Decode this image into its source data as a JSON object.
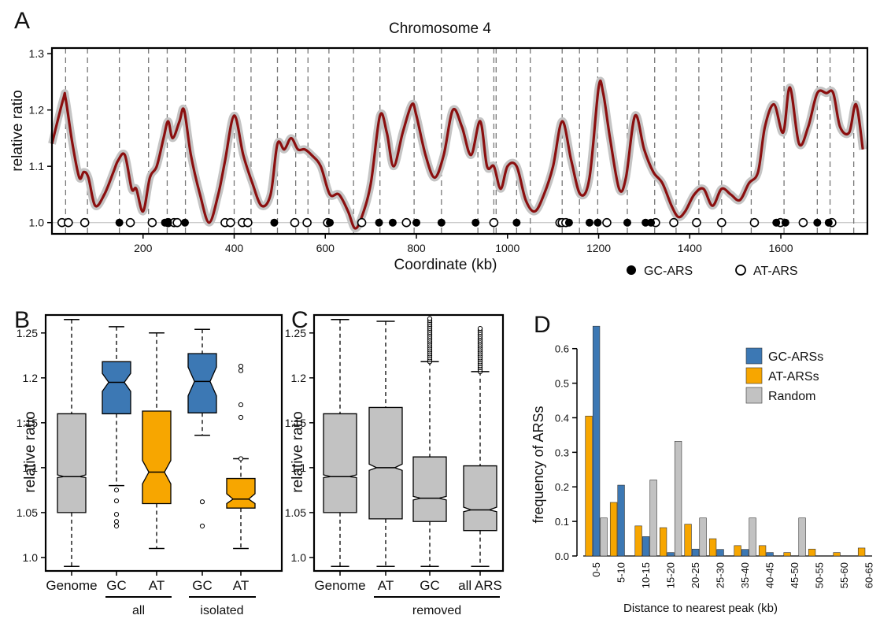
{
  "panels": {
    "A": {
      "letter": "A",
      "title": "Chromosome 4",
      "ylabel": "relative ratio",
      "xlabel": "Coordinate (kb)",
      "yticks": [
        "1.0",
        "1.1",
        "1.2",
        "1.3"
      ],
      "xticks": [
        "200",
        "400",
        "600",
        "800",
        "1000",
        "1200",
        "1400",
        "1600"
      ],
      "legend": {
        "gc": "GC-ARS",
        "at": "AT-ARS"
      }
    },
    "B": {
      "letter": "B",
      "ylabel": "relative ratio",
      "yticks": [
        "1.0",
        "1.05",
        "1.1",
        "1.15",
        "1.2",
        "1.25"
      ],
      "cats": [
        "Genome",
        "GC",
        "AT",
        "GC",
        "AT"
      ],
      "groups": [
        "all",
        "isolated"
      ]
    },
    "C": {
      "letter": "C",
      "ylabel": "relative ratio",
      "yticks": [
        "1.0",
        "1.05",
        "1.1",
        "1.15",
        "1.2",
        "1.25"
      ],
      "cats": [
        "Genome",
        "AT",
        "GC",
        "all ARS"
      ],
      "group": "removed"
    },
    "D": {
      "letter": "D",
      "ylabel": "frequency of ARSs",
      "xlabel": "Distance to nearest peak (kb)",
      "yticks": [
        "0.0",
        "0.1",
        "0.2",
        "0.3",
        "0.4",
        "0.5",
        "0.6"
      ],
      "legend": [
        "GC-ARSs",
        "AT-ARSs",
        "Random"
      ]
    }
  },
  "colors": {
    "line": "#8b0f0f",
    "band": "#c4c4c4",
    "gc": "#3c78b4",
    "at": "#f7a600",
    "random": "#c2c2c2",
    "grey_box": "#c2c2c2"
  },
  "chart_data": [
    {
      "panel": "A",
      "type": "line",
      "title": "Chromosome 4",
      "xlabel": "Coordinate (kb)",
      "ylabel": "relative ratio",
      "xlim": [
        0,
        1790
      ],
      "ylim": [
        0.98,
        1.31
      ],
      "x": [
        0,
        25,
        30,
        45,
        60,
        70,
        80,
        95,
        115,
        135,
        145,
        160,
        175,
        185,
        200,
        215,
        230,
        245,
        255,
        265,
        280,
        290,
        305,
        325,
        345,
        365,
        380,
        400,
        420,
        440,
        460,
        480,
        495,
        510,
        525,
        540,
        555,
        570,
        590,
        610,
        630,
        650,
        665,
        680,
        700,
        720,
        735,
        750,
        770,
        790,
        800,
        820,
        840,
        860,
        880,
        900,
        920,
        940,
        955,
        970,
        985,
        1000,
        1020,
        1040,
        1060,
        1080,
        1100,
        1120,
        1140,
        1160,
        1180,
        1200,
        1210,
        1225,
        1245,
        1260,
        1280,
        1300,
        1320,
        1340,
        1360,
        1375,
        1390,
        1410,
        1430,
        1450,
        1470,
        1490,
        1510,
        1530,
        1550,
        1565,
        1585,
        1605,
        1620,
        1640,
        1660,
        1680,
        1700,
        1715,
        1730,
        1750,
        1765,
        1780
      ],
      "y": [
        1.14,
        1.22,
        1.22,
        1.14,
        1.08,
        1.09,
        1.08,
        1.03,
        1.05,
        1.09,
        1.11,
        1.12,
        1.06,
        1.06,
        1.02,
        1.08,
        1.1,
        1.15,
        1.18,
        1.15,
        1.18,
        1.2,
        1.12,
        1.05,
        1.0,
        1.05,
        1.11,
        1.19,
        1.12,
        1.07,
        1.03,
        1.05,
        1.14,
        1.13,
        1.15,
        1.13,
        1.13,
        1.12,
        1.1,
        1.05,
        1.05,
        1.02,
        0.99,
        1.01,
        1.07,
        1.19,
        1.16,
        1.1,
        1.16,
        1.21,
        1.19,
        1.12,
        1.08,
        1.12,
        1.2,
        1.17,
        1.12,
        1.18,
        1.1,
        1.1,
        1.06,
        1.1,
        1.1,
        1.04,
        1.02,
        1.05,
        1.1,
        1.18,
        1.11,
        1.05,
        1.08,
        1.24,
        1.23,
        1.15,
        1.06,
        1.08,
        1.19,
        1.13,
        1.09,
        1.07,
        1.03,
        1.01,
        1.02,
        1.05,
        1.06,
        1.03,
        1.06,
        1.05,
        1.04,
        1.07,
        1.09,
        1.17,
        1.21,
        1.16,
        1.24,
        1.14,
        1.17,
        1.23,
        1.23,
        1.23,
        1.17,
        1.16,
        1.21,
        1.13
      ],
      "dashed_vlines": [
        30,
        78,
        148,
        212,
        253,
        293,
        400,
        437,
        495,
        535,
        562,
        608,
        662,
        720,
        795,
        855,
        935,
        970,
        975,
        1020,
        1050,
        1120,
        1158,
        1198,
        1263,
        1323,
        1370,
        1420,
        1470,
        1535,
        1607,
        1680,
        1708,
        1760
      ],
      "gc_ars_x": [
        148,
        248,
        255,
        292,
        488,
        610,
        718,
        748,
        800,
        855,
        930,
        1020,
        1135,
        1180,
        1198,
        1263,
        1303,
        1315,
        1590,
        1610,
        1680,
        1705
      ],
      "at_ars_x": [
        22,
        36,
        72,
        172,
        220,
        255,
        268,
        275,
        380,
        392,
        418,
        430,
        533,
        560,
        605,
        680,
        778,
        970,
        1115,
        1120,
        1128,
        1218,
        1325,
        1365,
        1415,
        1470,
        1542,
        1599,
        1649,
        1712
      ],
      "series": [
        {
          "name": "GC-ARS"
        },
        {
          "name": "AT-ARS"
        }
      ]
    },
    {
      "panel": "B",
      "type": "boxplot",
      "ylabel": "relative ratio",
      "ylim": [
        0.985,
        1.27
      ],
      "categories": [
        "Genome",
        "GC",
        "AT",
        "GC",
        "AT"
      ],
      "groups": [
        {
          "label": "all",
          "categories": [
            1,
            2
          ]
        },
        {
          "label": "isolated",
          "categories": [
            3,
            4
          ]
        }
      ],
      "boxes": [
        {
          "min": 0.99,
          "q1": 1.05,
          "median": 1.09,
          "q3": 1.16,
          "max": 1.265,
          "notch": [
            1.089,
            1.092
          ],
          "color": "grey",
          "outliers": []
        },
        {
          "min": 1.08,
          "q1": 1.16,
          "median": 1.195,
          "q3": 1.218,
          "max": 1.257,
          "notch": [
            1.185,
            1.205
          ],
          "color": "gc",
          "outliers": [
            1.075,
            1.063,
            1.048,
            1.04,
            1.035
          ]
        },
        {
          "min": 1.01,
          "q1": 1.06,
          "median": 1.095,
          "q3": 1.163,
          "max": 1.25,
          "notch": [
            1.082,
            1.108
          ],
          "color": "at",
          "outliers": []
        },
        {
          "min": 1.136,
          "q1": 1.161,
          "median": 1.196,
          "q3": 1.227,
          "max": 1.254,
          "notch": [
            1.18,
            1.212
          ],
          "color": "gc",
          "outliers": [
            1.062,
            1.035
          ]
        },
        {
          "min": 1.01,
          "q1": 1.055,
          "median": 1.065,
          "q3": 1.088,
          "max": 1.11,
          "notch": [
            1.06,
            1.071
          ],
          "color": "at",
          "outliers": [
            1.213,
            1.208,
            1.17,
            1.156,
            1.11
          ]
        }
      ]
    },
    {
      "panel": "C",
      "type": "boxplot",
      "ylabel": "relative ratio",
      "ylim": [
        0.985,
        1.27
      ],
      "categories": [
        "Genome",
        "AT",
        "GC",
        "all ARS"
      ],
      "groups": [
        {
          "label": "removed",
          "categories": [
            1,
            2,
            3
          ]
        }
      ],
      "boxes": [
        {
          "min": 0.99,
          "q1": 1.05,
          "median": 1.09,
          "q3": 1.16,
          "max": 1.265,
          "notch": [
            1.089,
            1.092
          ],
          "color": "grey",
          "outliers": []
        },
        {
          "min": 0.99,
          "q1": 1.043,
          "median": 1.1,
          "q3": 1.167,
          "max": 1.263,
          "notch": [
            1.097,
            1.104
          ],
          "color": "grey",
          "outliers": []
        },
        {
          "min": 0.99,
          "q1": 1.04,
          "median": 1.066,
          "q3": 1.112,
          "max": 1.218,
          "notch": [
            1.064,
            1.068
          ],
          "color": "grey",
          "outliers_range": [
            1.218,
            1.266
          ]
        },
        {
          "min": 0.99,
          "q1": 1.03,
          "median": 1.053,
          "q3": 1.102,
          "max": 1.207,
          "notch": [
            1.051,
            1.056
          ],
          "color": "grey",
          "outliers_range": [
            1.207,
            1.255
          ]
        }
      ]
    },
    {
      "panel": "D",
      "type": "bar",
      "xlabel": "Distance to nearest peak (kb)",
      "ylabel": "frequency of ARSs",
      "ylim": [
        0,
        0.67
      ],
      "categories": [
        "0-5",
        "5-10",
        "10-15",
        "15-20",
        "20-25",
        "25-30",
        "35-40",
        "40-45",
        "45-50",
        "50-55",
        "55-60",
        "60-65"
      ],
      "series": [
        {
          "name": "AT-ARSs",
          "values": [
            0.405,
            0.155,
            0.087,
            0.082,
            0.092,
            0.05,
            0.03,
            0.03,
            0.01,
            0.02,
            0.01,
            0.023
          ]
        },
        {
          "name": "GC-ARSs",
          "values": [
            0.665,
            0.205,
            0.056,
            0.01,
            0.02,
            0.019,
            0.019,
            0.01,
            0.0,
            0.0,
            0.0,
            0.0
          ]
        },
        {
          "name": "Random",
          "values": [
            0.11,
            0.0,
            0.22,
            0.332,
            0.11,
            0.0,
            0.11,
            0.0,
            0.11,
            0.0,
            0.0,
            0.0
          ]
        }
      ]
    }
  ]
}
